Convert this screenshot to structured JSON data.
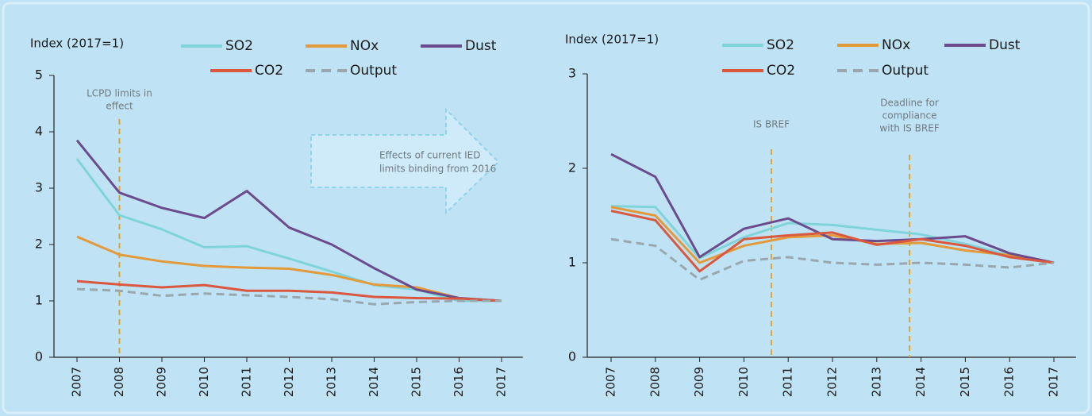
{
  "chart_data": [
    {
      "type": "line",
      "y_label": "Index (2017=1)",
      "categories": [
        "2007",
        "2008",
        "2009",
        "2010",
        "2011",
        "2012",
        "2013",
        "2014",
        "2015",
        "2016",
        "2017"
      ],
      "ylim": [
        0,
        5
      ],
      "yticks": [
        0,
        1,
        2,
        3,
        4,
        5
      ],
      "series": [
        {
          "name": "SO2",
          "color": "#7fd4da",
          "values": [
            3.52,
            2.52,
            2.27,
            1.95,
            1.97,
            1.75,
            1.52,
            1.28,
            1.2,
            1.0,
            1.0
          ]
        },
        {
          "name": "NOx",
          "color": "#e39a3b",
          "values": [
            2.14,
            1.82,
            1.7,
            1.62,
            1.59,
            1.57,
            1.46,
            1.29,
            1.24,
            1.05,
            1.0
          ]
        },
        {
          "name": "Dust",
          "color": "#6b4b8c",
          "values": [
            3.85,
            2.92,
            2.65,
            2.47,
            2.95,
            2.3,
            2.0,
            1.58,
            1.2,
            1.05,
            1.0
          ]
        },
        {
          "name": "CO2",
          "color": "#d9583f",
          "values": [
            1.35,
            1.29,
            1.24,
            1.28,
            1.18,
            1.18,
            1.15,
            1.07,
            1.05,
            1.04,
            1.0
          ]
        },
        {
          "name": "Output",
          "color": "#9aa7ae",
          "dashed": true,
          "values": [
            1.21,
            1.18,
            1.09,
            1.13,
            1.1,
            1.07,
            1.03,
            0.94,
            0.98,
            1.0,
            1.0
          ]
        }
      ],
      "annotations": [
        {
          "text": [
            "LCPD limits in",
            "effect"
          ]
        },
        {
          "text": [
            "Effects of current IED",
            "limits binding from 2016"
          ]
        }
      ]
    },
    {
      "type": "line",
      "y_label": "Index (2017=1)",
      "categories": [
        "2007",
        "2008",
        "2009",
        "2010",
        "2011",
        "2012",
        "2013",
        "2014",
        "2015",
        "2016",
        "2017"
      ],
      "ylim": [
        0,
        3
      ],
      "yticks": [
        0,
        1,
        2,
        3
      ],
      "series": [
        {
          "name": "SO2",
          "color": "#7fd4da",
          "values": [
            1.6,
            1.59,
            1.05,
            1.27,
            1.42,
            1.4,
            1.35,
            1.3,
            1.2,
            1.08,
            1.0
          ]
        },
        {
          "name": "NOx",
          "color": "#e39a3b",
          "values": [
            1.59,
            1.5,
            1.0,
            1.18,
            1.27,
            1.29,
            1.2,
            1.21,
            1.13,
            1.08,
            1.0
          ]
        },
        {
          "name": "Dust",
          "color": "#6b4b8c",
          "values": [
            2.15,
            1.91,
            1.06,
            1.36,
            1.47,
            1.25,
            1.23,
            1.25,
            1.28,
            1.1,
            1.0
          ]
        },
        {
          "name": "CO2",
          "color": "#d9583f",
          "values": [
            1.55,
            1.45,
            0.91,
            1.25,
            1.29,
            1.32,
            1.19,
            1.25,
            1.18,
            1.06,
            1.0
          ]
        },
        {
          "name": "Output",
          "color": "#9aa7ae",
          "dashed": true,
          "values": [
            1.25,
            1.18,
            0.82,
            1.02,
            1.06,
            1.0,
            0.98,
            1.0,
            0.98,
            0.95,
            1.0
          ]
        }
      ],
      "annotations": [
        {
          "text": [
            "IS BREF"
          ]
        },
        {
          "text": [
            "Deadline for",
            "compliance",
            "with IS BREF"
          ]
        }
      ]
    }
  ]
}
